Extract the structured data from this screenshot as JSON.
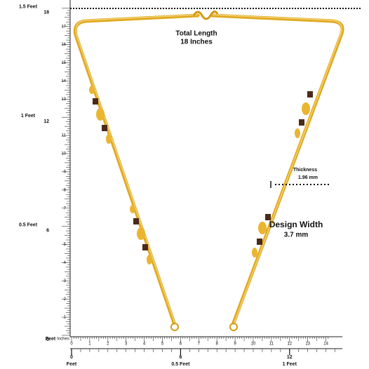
{
  "vertical_ruler": {
    "inches": [
      0,
      1,
      2,
      3,
      4,
      5,
      6,
      7,
      8,
      9,
      10,
      11,
      12,
      13,
      14,
      15,
      16,
      17,
      18
    ],
    "feet_labels": [
      "0.5 Feet",
      "1 Feet",
      "1.5 Feet"
    ],
    "unit": "Feet",
    "sub_unit": "Inches"
  },
  "horizontal_ruler": {
    "inches": [
      0,
      1,
      2,
      3,
      4,
      5,
      6,
      7,
      8,
      9,
      10,
      11,
      12,
      13,
      14
    ],
    "feet": [
      0,
      6,
      12
    ],
    "feet_labels": [
      "Feet",
      "0.5 Feet",
      "1 Feet"
    ]
  },
  "annotations": {
    "length_title": "Total Length",
    "length_value": "18 Inches",
    "thickness_title": "Thickness",
    "thickness_value": "1.96 mm",
    "width_title": "Design Width",
    "width_value": "3.7 mm"
  }
}
